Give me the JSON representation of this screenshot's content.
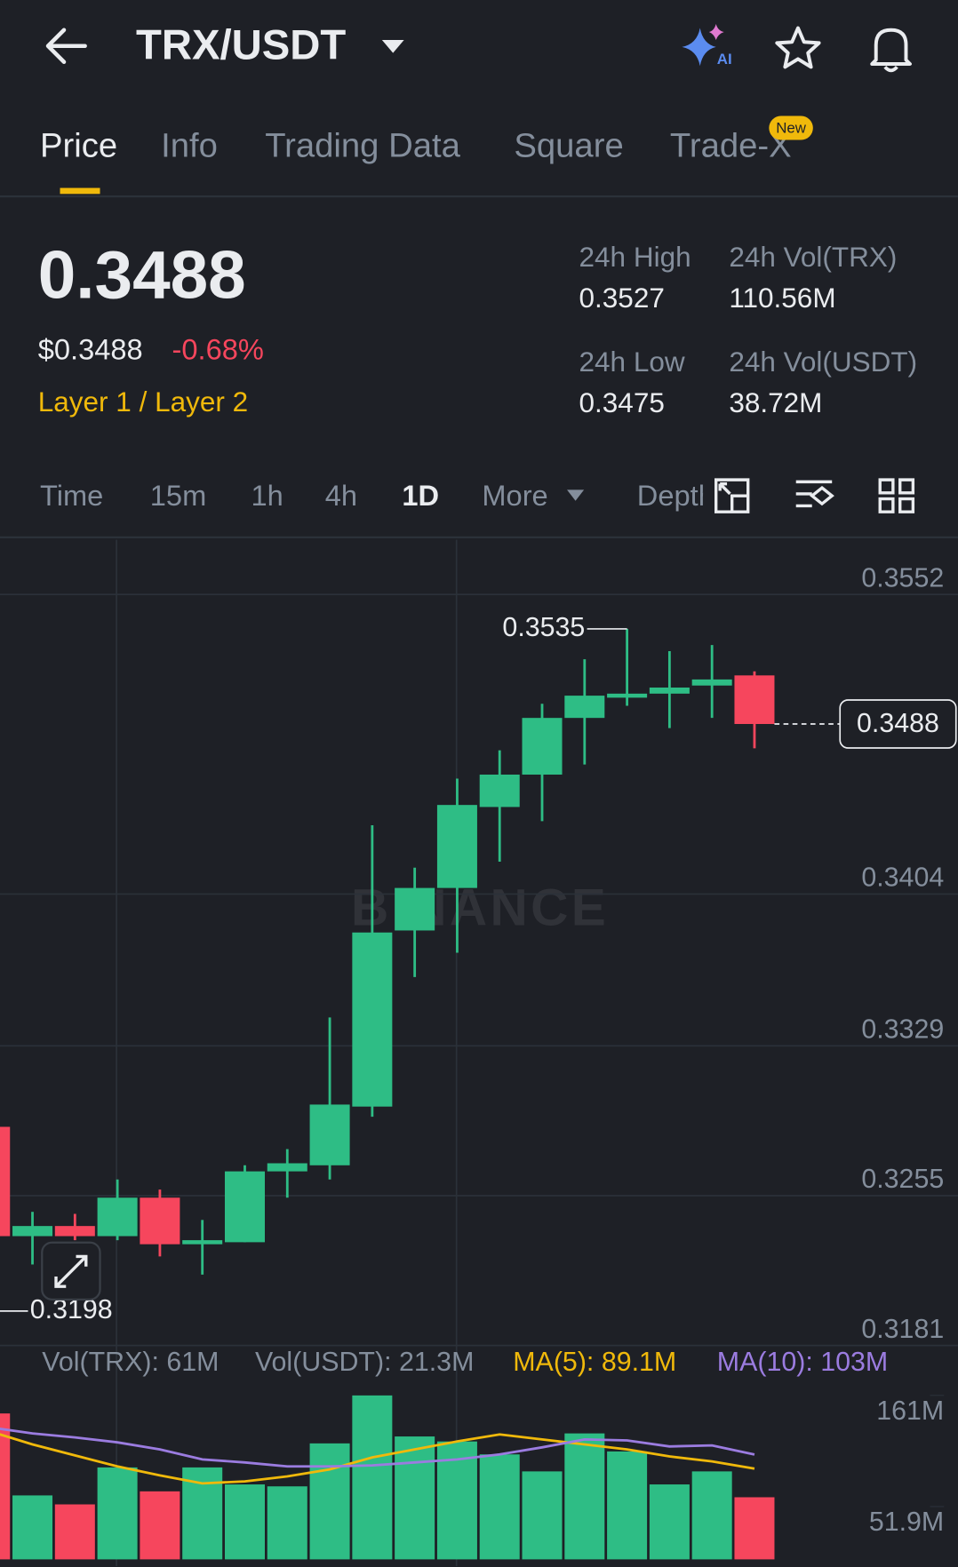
{
  "header": {
    "pair": "TRX/USDT",
    "ai": "AI"
  },
  "tabs": {
    "items": [
      "Price",
      "Info",
      "Trading Data",
      "Square",
      "Trade-X"
    ],
    "badge": "New"
  },
  "ticker": {
    "last": "0.3488",
    "usd": "$0.3488",
    "change": "-0.68%",
    "tags": "Layer 1 / Layer 2"
  },
  "stats": [
    {
      "label": "24h High",
      "value": "0.3527"
    },
    {
      "label": "24h Vol(TRX)",
      "value": "110.56M"
    },
    {
      "label": "24h Low",
      "value": "0.3475"
    },
    {
      "label": "24h Vol(USDT)",
      "value": "38.72M"
    }
  ],
  "intervals": [
    "Time",
    "15m",
    "1h",
    "4h",
    "1D",
    "More",
    "Depth"
  ],
  "chart_data": {
    "type": "candlestick",
    "watermark": "BINANCE",
    "open": [
      0.3289,
      0.3235,
      0.324,
      0.3235,
      0.3254,
      0.3231,
      0.3232,
      0.3267,
      0.327,
      0.3299,
      0.3386,
      0.3407,
      0.3447,
      0.3463,
      0.3491,
      0.3501,
      0.3503,
      0.3507,
      0.3512
    ],
    "high": [
      0.3295,
      0.3247,
      0.3246,
      0.3263,
      0.3258,
      0.3243,
      0.327,
      0.3278,
      0.3343,
      0.3438,
      0.3417,
      0.3461,
      0.3475,
      0.3498,
      0.352,
      0.3535,
      0.3524,
      0.3527,
      0.3514
    ],
    "low": [
      0.3198,
      0.3221,
      0.3233,
      0.3233,
      0.3225,
      0.3216,
      0.3232,
      0.3254,
      0.3263,
      0.3294,
      0.3363,
      0.3375,
      0.342,
      0.344,
      0.3468,
      0.3497,
      0.3486,
      0.3491,
      0.3476
    ],
    "close": [
      0.3235,
      0.324,
      0.3235,
      0.3254,
      0.3231,
      0.3233,
      0.3267,
      0.3271,
      0.33,
      0.3385,
      0.3407,
      0.3448,
      0.3463,
      0.3491,
      0.3502,
      0.3503,
      0.3506,
      0.351,
      0.3488
    ],
    "up_color": "#2ebd85",
    "down_color": "#f6465d",
    "ylim": [
      0.3181,
      0.3579
    ],
    "yticks": [
      0.3552,
      0.3404,
      0.3329,
      0.3255,
      0.3181
    ],
    "high_label": 0.3535,
    "low_label": 0.3198,
    "last_price": 0.3488,
    "volume_legend": [
      {
        "text": "Vol(TRX): 61M",
        "color": "#848e9c"
      },
      {
        "text": "Vol(USDT): 21.3M",
        "color": "#848e9c"
      },
      {
        "text": "MA(5): 89.1M",
        "color": "#f0b90b"
      },
      {
        "text": "MA(10): 103M",
        "color": "#9b7ce0"
      }
    ],
    "volume": [
      143.3,
      62.8,
      54.0,
      90.3,
      66.8,
      90.3,
      73.6,
      71.7,
      113.9,
      161,
      120.7,
      115.8,
      103.1,
      86.4,
      123.7,
      106.0,
      73.6,
      86.4,
      61
    ],
    "ma_series": [
      {
        "color": "#f0b90b",
        "values": [
          125.7,
          112.9,
          102.1,
          91.3,
          82.5,
          74.6,
          76.6,
          81.5,
          88.4,
          100.1,
          108.0,
          115.8,
          122.7,
          117.8,
          112.9,
          108.0,
          101.1,
          96.2,
          89.1
        ]
      },
      {
        "color": "#9b7ce0",
        "values": [
          129.6,
          123.7,
          119.8,
          114.9,
          108.0,
          98.2,
          95.2,
          91.3,
          91.3,
          92.3,
          95.2,
          98.2,
          103.1,
          110.0,
          117.8,
          116.8,
          110.9,
          111.9,
          103
        ]
      }
    ],
    "vol_ylim": [
      0,
      161
    ],
    "vol_ticks": [
      {
        "value": 161,
        "label": "161M"
      },
      {
        "value": 51.9,
        "label": "51.9M"
      }
    ]
  }
}
